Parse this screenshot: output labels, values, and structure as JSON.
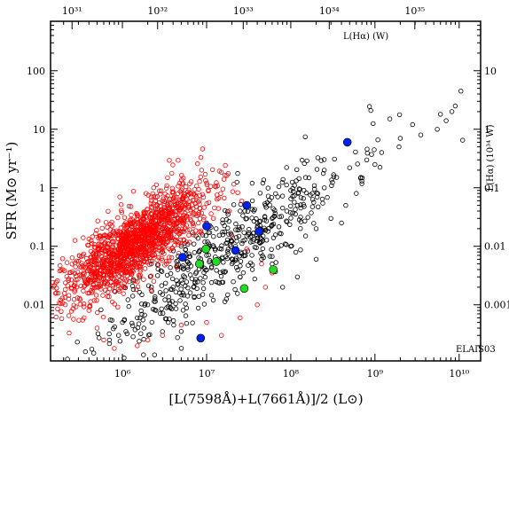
{
  "chart_data": {
    "type": "scatter",
    "title": "",
    "annotation": "ELAIS03",
    "xlabel": "[L(7598Å)+L(7661Å)]/2 (L⊙)",
    "ylabel": "SFR (M⊙ yr⁻¹)",
    "top_axis_label": "L(Hα) (W)",
    "right_axis_label": "L(Hα) (10³⁴ W)",
    "xscale": "log",
    "yscale": "log",
    "xlim": [
      140000,
      18000000000
    ],
    "ylim": [
      0.0011,
      700
    ],
    "x_ticks": [
      {
        "value": 1000000,
        "label": "10⁶"
      },
      {
        "value": 10000000,
        "label": "10⁷"
      },
      {
        "value": 100000000,
        "label": "10⁸"
      },
      {
        "value": 1000000000,
        "label": "10⁹"
      },
      {
        "value": 10000000000,
        "label": "10¹⁰"
      }
    ],
    "y_ticks": [
      {
        "value": 0.01,
        "label": "0.01"
      },
      {
        "value": 0.1,
        "label": "0.1"
      },
      {
        "value": 1,
        "label": "1"
      },
      {
        "value": 10,
        "label": "10"
      },
      {
        "value": 100,
        "label": "100"
      }
    ],
    "top_ticks": [
      {
        "frac": 0.05,
        "label": "10³¹"
      },
      {
        "frac": 0.249,
        "label": "10³²"
      },
      {
        "frac": 0.448,
        "label": "10³³"
      },
      {
        "frac": 0.648,
        "label": "10³⁴"
      },
      {
        "frac": 0.847,
        "label": "10³⁵"
      }
    ],
    "right_ticks": [
      {
        "value": 0.01,
        "label": "0.001"
      },
      {
        "value": 0.1,
        "label": "0.01"
      },
      {
        "value": 1,
        "label": "0.1"
      },
      {
        "value": 10,
        "label": "1"
      },
      {
        "value": 100,
        "label": "10"
      }
    ],
    "series": [
      {
        "marker": "open-circle",
        "color": "#000000",
        "points": [
          [
            10500000000,
            45
          ],
          [
            9000000000,
            25
          ],
          [
            8200000000,
            20
          ],
          [
            11000000000,
            6.5
          ],
          [
            7000000000,
            14
          ],
          [
            6000000000,
            18
          ],
          [
            5500000000,
            10
          ],
          [
            3500000000,
            8
          ],
          [
            2800000000,
            12
          ],
          [
            1500000000,
            15
          ],
          [
            1200000000,
            4
          ],
          [
            800000000,
            3
          ],
          [
            500000000,
            2.2
          ],
          [
            350000000,
            1.5
          ],
          [
            250000000,
            1
          ],
          [
            180000000,
            0.8
          ],
          [
            120000000,
            0.5
          ],
          [
            80000000,
            0.45
          ],
          [
            60000000,
            0.3
          ],
          [
            40000000,
            0.25
          ],
          [
            30000000,
            0.15
          ],
          [
            20000000,
            0.12
          ],
          [
            15000000,
            0.09
          ],
          [
            10000000,
            0.07
          ],
          [
            8000000,
            0.05
          ],
          [
            6000000,
            0.04
          ],
          [
            4000000,
            0.02
          ],
          [
            3000000,
            0.015
          ],
          [
            2000000,
            0.01
          ],
          [
            1500000,
            0.006
          ],
          [
            1000000,
            0.005
          ],
          [
            900000,
            0.003
          ],
          [
            700000,
            0.0025
          ],
          [
            1100000,
            0.0035
          ],
          [
            1800000,
            0.004
          ],
          [
            5000000,
            0.0035
          ],
          [
            3500000,
            0.005
          ],
          [
            2500000,
            0.008
          ],
          [
            700000000,
            1.3
          ],
          [
            1000000000,
            2.5
          ],
          [
            2000000000,
            7
          ],
          [
            450000000,
            0.5
          ],
          [
            300000000,
            0.3
          ],
          [
            200000000,
            0.2
          ],
          [
            150000000,
            0.15
          ],
          [
            100000000,
            0.1
          ],
          [
            60000000,
            0.05
          ],
          [
            45000000,
            0.06
          ],
          [
            35000000,
            0.04
          ],
          [
            25000000,
            0.03
          ],
          [
            20000000,
            0.05
          ],
          [
            12000000,
            0.012
          ],
          [
            9000000,
            0.015
          ],
          [
            7000000,
            0.02
          ],
          [
            5500000,
            0.03
          ],
          [
            80000000,
            0.02
          ],
          [
            120000000,
            0.03
          ],
          [
            200000000,
            0.06
          ],
          [
            400000000,
            0.25
          ],
          [
            600000000,
            0.8
          ],
          [
            250000000,
            2
          ],
          [
            150000000,
            1.5
          ],
          [
            100000000,
            0.9
          ],
          [
            70000000,
            0.7
          ],
          [
            50000000,
            0.5
          ],
          [
            35000000,
            0.6
          ],
          [
            25000000,
            0.4
          ],
          [
            18000000,
            0.35
          ],
          [
            13000000,
            0.2
          ],
          [
            10000000,
            0.25
          ],
          [
            7500000,
            0.15
          ],
          [
            5000000,
            0.1
          ],
          [
            3000000,
            0.08
          ],
          [
            2200000,
            0.05
          ],
          [
            1600000,
            0.03
          ]
        ],
        "procedural": {
          "n": 520,
          "x_log_center": 7.2,
          "x_log_spread": 0.75,
          "slope": 1.0,
          "intercept": -8.3,
          "y_scatter": 0.38,
          "seed": 11
        }
      },
      {
        "marker": "open-circle",
        "color": "#ff0000",
        "points": [
          [
            400000,
            0.008
          ],
          [
            350000,
            0.006
          ],
          [
            500000,
            0.004
          ],
          [
            600000,
            0.0025
          ],
          [
            800000,
            0.0018
          ],
          [
            1500000,
            0.002
          ],
          [
            2000000,
            0.0025
          ],
          [
            3000000,
            0.003
          ],
          [
            5000000,
            0.0045
          ],
          [
            10000000,
            0.005
          ],
          [
            15000000,
            0.003
          ],
          [
            25000000,
            0.006
          ],
          [
            40000000,
            0.01
          ],
          [
            60000000,
            0.035
          ],
          [
            50000000,
            0.02
          ],
          [
            45000000,
            0.05
          ],
          [
            30000000,
            0.09
          ],
          [
            20000000,
            0.15
          ],
          [
            12000000,
            0.3
          ],
          [
            8000000,
            0.25
          ]
        ],
        "procedural": {
          "n": 1500,
          "x_log_center": 6.15,
          "x_log_spread": 0.42,
          "slope": 0.9,
          "intercept": -6.5,
          "y_scatter": 0.3,
          "seed": 23
        }
      },
      {
        "marker": "filled-circle",
        "color": "#0022ee",
        "points": [
          [
            470000000,
            6
          ],
          [
            30000000,
            0.5
          ],
          [
            10000000,
            0.22
          ],
          [
            42000000,
            0.18
          ],
          [
            22000000,
            0.085
          ],
          [
            5200000,
            0.065
          ],
          [
            8500000,
            0.0027
          ]
        ]
      },
      {
        "marker": "filled-circle",
        "color": "#22dd22",
        "points": [
          [
            9800000,
            0.09
          ],
          [
            8200000,
            0.05
          ],
          [
            13000000,
            0.055
          ],
          [
            62000000,
            0.04
          ],
          [
            28000000,
            0.019
          ]
        ]
      }
    ]
  }
}
